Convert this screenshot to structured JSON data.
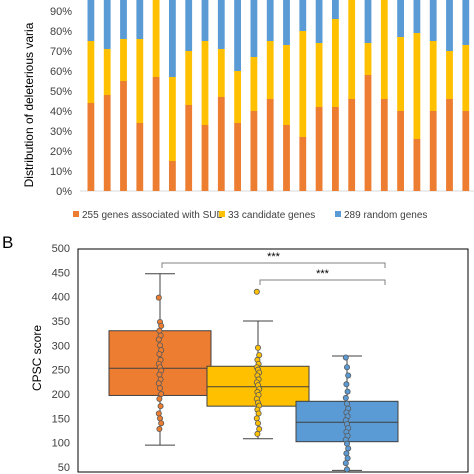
{
  "chart_data": [
    {
      "type": "bar",
      "stacked": true,
      "ylabel": "Distribution of deleterious varia",
      "ylim": [
        0,
        100
      ],
      "yticks": [
        "0%",
        "10%",
        "20%",
        "30%",
        "40%",
        "50%",
        "60%",
        "70%",
        "80%",
        "90%"
      ],
      "grid": false,
      "legend_position": "bottom",
      "series": [
        {
          "name": "255 genes associated with SUD",
          "color": "#ED7D31",
          "values": [
            44,
            48,
            55,
            34,
            57,
            15,
            43,
            33,
            47,
            34,
            40,
            46,
            33,
            27,
            42,
            42,
            46,
            58,
            46,
            40,
            26,
            40,
            46,
            40
          ]
        },
        {
          "name": "33 candidate genes",
          "color": "#FFC000",
          "values": [
            31,
            23,
            21,
            42,
            43,
            42,
            27,
            42,
            24,
            26,
            27,
            29,
            40,
            53,
            32,
            44,
            54,
            16,
            52,
            37,
            53,
            35,
            24,
            33
          ]
        },
        {
          "name": "289 random genes",
          "color": "#5B9BD5",
          "values": [
            25,
            29,
            24,
            24,
            0,
            43,
            30,
            25,
            29,
            40,
            33,
            25,
            27,
            20,
            26,
            14,
            0,
            26,
            2,
            23,
            21,
            25,
            30,
            27
          ]
        }
      ]
    },
    {
      "type": "box",
      "ylabel": "CPSC score",
      "ylim": [
        50,
        500
      ],
      "yticks": [
        50,
        100,
        150,
        200,
        250,
        300,
        350,
        400,
        450,
        500
      ],
      "grid": false,
      "groups": [
        {
          "color": "#ED7D31",
          "whisker_low": 95,
          "q1": 197,
          "median": 253,
          "q3": 330,
          "whisker_high": 447,
          "points": [
            398,
            348,
            340,
            330,
            320,
            312,
            300,
            290,
            282,
            270,
            262,
            255,
            248,
            240,
            230,
            222,
            212,
            200,
            190,
            175,
            160,
            150,
            140,
            128
          ]
        },
        {
          "color": "#FFC000",
          "whisker_low": 108,
          "q1": 175,
          "median": 215,
          "q3": 257,
          "whisker_high": 350,
          "points": [
            410,
            295,
            280,
            270,
            262,
            255,
            250,
            244,
            238,
            230,
            224,
            218,
            210,
            204,
            198,
            190,
            182,
            176,
            168,
            160,
            150,
            140,
            128,
            118
          ]
        },
        {
          "color": "#5B9BD5",
          "whisker_low": 43,
          "q1": 102,
          "median": 142,
          "q3": 185,
          "whisker_high": 278,
          "points": [
            275,
            255,
            238,
            220,
            205,
            192,
            180,
            170,
            162,
            154,
            146,
            138,
            130,
            122,
            114,
            106,
            98,
            88,
            78,
            68,
            58,
            45
          ]
        }
      ],
      "significance": [
        {
          "from": 0,
          "to": 2,
          "label": "***"
        },
        {
          "from": 1,
          "to": 2,
          "label": "***"
        }
      ]
    }
  ],
  "panel_b_label": "B"
}
